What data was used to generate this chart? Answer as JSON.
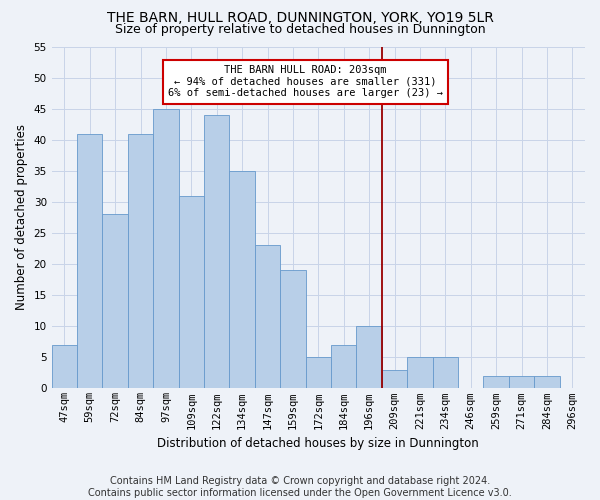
{
  "title": "THE BARN, HULL ROAD, DUNNINGTON, YORK, YO19 5LR",
  "subtitle": "Size of property relative to detached houses in Dunnington",
  "xlabel": "Distribution of detached houses by size in Dunnington",
  "ylabel": "Number of detached properties",
  "bar_labels": [
    "47sqm",
    "59sqm",
    "72sqm",
    "84sqm",
    "97sqm",
    "109sqm",
    "122sqm",
    "134sqm",
    "147sqm",
    "159sqm",
    "172sqm",
    "184sqm",
    "196sqm",
    "209sqm",
    "221sqm",
    "234sqm",
    "246sqm",
    "259sqm",
    "271sqm",
    "284sqm",
    "296sqm"
  ],
  "bar_values": [
    7,
    41,
    28,
    41,
    45,
    31,
    44,
    35,
    23,
    19,
    5,
    7,
    10,
    3,
    5,
    5,
    0,
    2,
    2,
    2,
    0
  ],
  "bar_color": "#b8cfe8",
  "bar_edge_color": "#6699cc",
  "grid_color": "#c8d4e8",
  "background_color": "#eef2f8",
  "vline_x": 12.5,
  "vline_color": "#990000",
  "annotation_text": "THE BARN HULL ROAD: 203sqm\n← 94% of detached houses are smaller (331)\n6% of semi-detached houses are larger (23) →",
  "annotation_box_color": "#ffffff",
  "annotation_border_color": "#cc0000",
  "ylim": [
    0,
    55
  ],
  "yticks": [
    0,
    5,
    10,
    15,
    20,
    25,
    30,
    35,
    40,
    45,
    50,
    55
  ],
  "footer_line1": "Contains HM Land Registry data © Crown copyright and database right 2024.",
  "footer_line2": "Contains public sector information licensed under the Open Government Licence v3.0.",
  "title_fontsize": 10,
  "subtitle_fontsize": 9,
  "xlabel_fontsize": 8.5,
  "ylabel_fontsize": 8.5,
  "tick_fontsize": 7.5,
  "footer_fontsize": 7,
  "annot_fontsize": 7.5
}
